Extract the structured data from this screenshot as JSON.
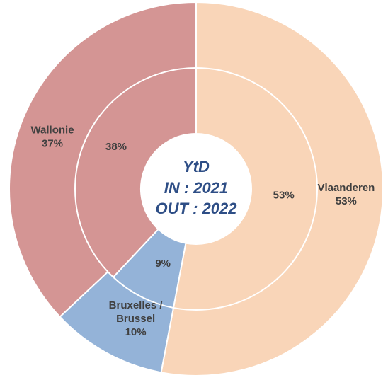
{
  "chart_data": {
    "type": "pie",
    "subtype": "double-donut",
    "center_label": [
      "YtD",
      "IN : 2021",
      "OUT : 2022"
    ],
    "categories": [
      "Vlaanderen",
      "Bruxelles / Brussel",
      "Wallonie"
    ],
    "colors": [
      "#F9D5B8",
      "#94B3D8",
      "#D49594"
    ],
    "series": [
      {
        "ring": "outer",
        "values": [
          53,
          10,
          37
        ],
        "labels": [
          [
            "Vlaanderen",
            "53%"
          ],
          [
            "Bruxelles /",
            "Brussel",
            "10%"
          ],
          [
            "Wallonie",
            "37%"
          ]
        ]
      },
      {
        "ring": "inner",
        "values": [
          53,
          9,
          38
        ],
        "labels": [
          [
            "53%"
          ],
          [
            "9%"
          ],
          [
            "38%"
          ]
        ]
      }
    ],
    "legend": "none"
  }
}
